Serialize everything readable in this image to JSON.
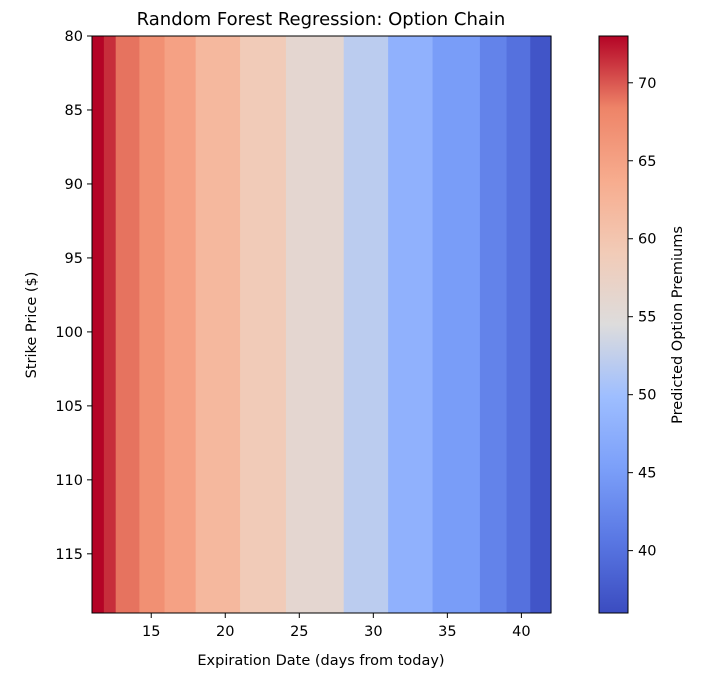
{
  "chart_data": {
    "type": "heatmap",
    "title": "Random Forest Regression: Option Chain",
    "xlabel": "Expiration Date (days from today)",
    "ylabel": "Strike Price ($)",
    "colorbar_label": "Predicted Option Premiums",
    "colormap": "coolwarm",
    "xlim": [
      11,
      42
    ],
    "ylim": [
      80,
      119
    ],
    "y_inverted": true,
    "x_ticks": [
      "15",
      "20",
      "25",
      "30",
      "35",
      "40"
    ],
    "y_ticks": [
      "80",
      "85",
      "90",
      "95",
      "100",
      "105",
      "110",
      "115"
    ],
    "colorbar_ticks": [
      "40",
      "45",
      "50",
      "55",
      "60",
      "65",
      "70"
    ],
    "color_range": [
      36,
      73
    ],
    "x_bins": [
      11,
      11.8,
      12.6,
      14.2,
      15.9,
      18,
      21,
      24.1,
      28,
      31,
      34,
      37.2,
      39,
      40.6,
      42
    ],
    "column_values": [
      73,
      71.5,
      69,
      67,
      65,
      62,
      59,
      56,
      52,
      48,
      45,
      42,
      40,
      37
    ],
    "grid": false,
    "legend": "colorbar-right"
  }
}
